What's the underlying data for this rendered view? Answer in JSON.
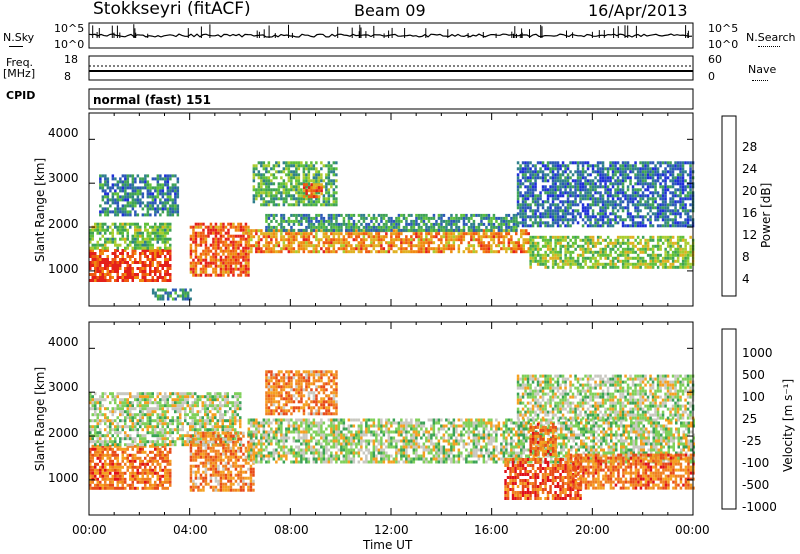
{
  "header": {
    "station": "Stokkseyri (fitACF)",
    "beam": "Beam 09",
    "date": "16/Apr/2013"
  },
  "top_panels": {
    "nsky_label": "N.Sky",
    "nsky_ticks": [
      "10^5",
      "10^0"
    ],
    "nsearch_label": "N.Search",
    "nsearch_ticks": [
      "10^5",
      "10^0"
    ],
    "freq_label": "Freq.",
    "freq_unit": "[MHz]",
    "freq_ticks": [
      "18",
      "8"
    ],
    "nave_label": "Nave",
    "nave_ticks": [
      "60",
      "0"
    ],
    "cpid_label": "CPID",
    "cpid_value": "normal (fast) 151"
  },
  "chart_data": [
    {
      "type": "heatmap",
      "panel": "power",
      "ylabel": "Slant Range [km]",
      "ylim": [
        200,
        4600
      ],
      "yticks": [
        "1000",
        "2000",
        "3000",
        "4000"
      ],
      "xlim_hours": [
        0,
        24
      ],
      "colorbar_label": "Power [dB]",
      "colorbar_ticks": [
        "4",
        "8",
        "12",
        "16",
        "20",
        "24",
        "28"
      ],
      "colormap": [
        "#1f2fd9",
        "#2c58b8",
        "#2f7f8c",
        "#3ea255",
        "#5fc03a",
        "#a9cc2e",
        "#e0b020",
        "#f08a10",
        "#ef5a10",
        "#e4201a"
      ],
      "regions": [
        {
          "t0": 0.0,
          "t1": 3.2,
          "r0": 800,
          "r1": 1500,
          "level": 0.9
        },
        {
          "t0": 0.0,
          "t1": 3.2,
          "r0": 1500,
          "r1": 2100,
          "level": 0.45
        },
        {
          "t0": 0.4,
          "t1": 3.5,
          "r0": 2300,
          "r1": 3200,
          "level": 0.25
        },
        {
          "t0": 4.0,
          "t1": 6.3,
          "r0": 900,
          "r1": 2100,
          "level": 0.85
        },
        {
          "t0": 6.3,
          "t1": 17.5,
          "r0": 1450,
          "r1": 1950,
          "level": 0.75
        },
        {
          "t0": 7.0,
          "t1": 17.0,
          "r0": 1950,
          "r1": 2300,
          "level": 0.3
        },
        {
          "t0": 6.5,
          "t1": 9.8,
          "r0": 2500,
          "r1": 3500,
          "level": 0.4
        },
        {
          "t0": 8.5,
          "t1": 9.2,
          "r0": 2700,
          "r1": 3000,
          "level": 0.8
        },
        {
          "t0": 17.5,
          "t1": 24.0,
          "r0": 1100,
          "r1": 1800,
          "level": 0.5
        },
        {
          "t0": 17.0,
          "t1": 24.0,
          "r0": 2000,
          "r1": 3500,
          "level": 0.2
        },
        {
          "t0": 2.5,
          "t1": 4.0,
          "r0": 350,
          "r1": 600,
          "level": 0.3
        }
      ]
    },
    {
      "type": "heatmap",
      "panel": "velocity",
      "ylabel": "Slant Range [km]",
      "ylim": [
        200,
        4600
      ],
      "yticks": [
        "1000",
        "2000",
        "3000",
        "4000"
      ],
      "xlim_hours": [
        0,
        24
      ],
      "xticks": [
        "00:00",
        "04:00",
        "08:00",
        "12:00",
        "16:00",
        "20:00",
        "00:00"
      ],
      "xlabel": "Time UT",
      "colorbar_label": "Velocity [m s⁻¹]",
      "colorbar_ticks": [
        "1000",
        "500",
        "100",
        "25",
        "-25",
        "-100",
        "-500",
        "-1000"
      ],
      "colormap": [
        "#2d3aa8",
        "#2a7a88",
        "#3aa255",
        "#7fd05a",
        "#c8c8c0",
        "#f5a020",
        "#f08020",
        "#e84a18",
        "#e0101a"
      ],
      "regions": [
        {
          "t0": 0.0,
          "t1": 3.2,
          "r0": 800,
          "r1": 1800,
          "level": 0.75
        },
        {
          "t0": 0.0,
          "t1": 6.0,
          "r0": 1800,
          "r1": 3000,
          "level": 0.45
        },
        {
          "t0": 4.0,
          "t1": 6.5,
          "r0": 800,
          "r1": 2100,
          "level": 0.7
        },
        {
          "t0": 6.3,
          "t1": 24.0,
          "r0": 1400,
          "r1": 2400,
          "level": 0.45
        },
        {
          "t0": 7.0,
          "t1": 9.8,
          "r0": 2500,
          "r1": 3500,
          "level": 0.7
        },
        {
          "t0": 16.5,
          "t1": 19.5,
          "r0": 600,
          "r1": 1500,
          "level": 0.8
        },
        {
          "t0": 17.5,
          "t1": 18.5,
          "r0": 1600,
          "r1": 2300,
          "level": 0.75
        },
        {
          "t0": 19.0,
          "t1": 24.0,
          "r0": 800,
          "r1": 1600,
          "level": 0.75
        },
        {
          "t0": 17.0,
          "t1": 24.0,
          "r0": 2400,
          "r1": 3400,
          "level": 0.45
        }
      ]
    }
  ]
}
